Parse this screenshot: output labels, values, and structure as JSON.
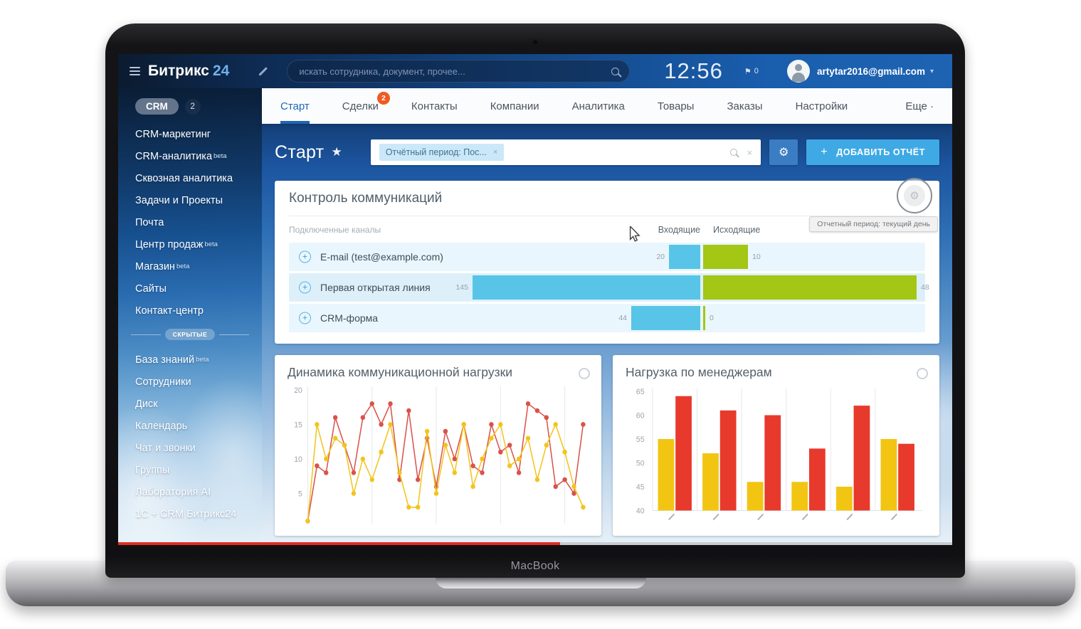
{
  "laptop": {
    "label": "MacBook"
  },
  "icons": {
    "close": "×",
    "caret": "▾",
    "star": "★",
    "gear": "⚙",
    "flag": "⚑",
    "plus": "+"
  },
  "topbar": {
    "logo_brand": "Битрикс",
    "logo_suffix": "24",
    "search_placeholder": "искать сотрудника, документ, прочее...",
    "clock": "12:56",
    "notifications": "0",
    "user_email": "artytar2016@gmail.com"
  },
  "sidebar": {
    "crm_pill": "CRM",
    "crm_badge": "2",
    "beta_label": "beta",
    "items": [
      {
        "label": "CRM-маркетинг"
      },
      {
        "label": "CRM-аналитика",
        "beta": true
      },
      {
        "label": "Сквозная аналитика"
      },
      {
        "label": "Задачи и Проекты"
      },
      {
        "label": "Почта"
      },
      {
        "label": "Центр продаж",
        "beta": true
      },
      {
        "label": "Магазин",
        "beta": true
      },
      {
        "label": "Сайты"
      },
      {
        "label": "Контакт-центр"
      }
    ],
    "hidden_divider": "СКРЫТЫЕ",
    "hidden_items": [
      {
        "label": "База знаний",
        "beta": true
      },
      {
        "label": "Сотрудники"
      },
      {
        "label": "Диск"
      },
      {
        "label": "Календарь"
      },
      {
        "label": "Чат и звонки"
      },
      {
        "label": "Группы"
      },
      {
        "label": "Лаборатория AI"
      },
      {
        "label": "1С + CRM Битрикс24"
      }
    ]
  },
  "tabs": {
    "items": [
      {
        "label": "Старт",
        "active": true
      },
      {
        "label": "Сделки",
        "badge": "2"
      },
      {
        "label": "Контакты"
      },
      {
        "label": "Компании"
      },
      {
        "label": "Аналитика"
      },
      {
        "label": "Товары"
      },
      {
        "label": "Заказы"
      },
      {
        "label": "Настройки"
      }
    ],
    "more_label": "Еще ·"
  },
  "page_header": {
    "title": "Старт",
    "filter_chip": "Отчётный период: Пос...",
    "add_report_label": "ДОБАВИТЬ ОТЧЁТ"
  },
  "communications_widget": {
    "title": "Контроль коммуникаций",
    "tooltip": "Отчетный период: текущий день",
    "channels_header": "Подключенные каналы",
    "incoming_header": "Входящие",
    "outgoing_header": "Исходящие",
    "colors": {
      "incoming": "#58c5e8",
      "outgoing": "#a4c614"
    },
    "rows": [
      {
        "label": "E-mail (test@example.com)",
        "incoming": 20,
        "outgoing": 10
      },
      {
        "label": "Первая открытая линия",
        "incoming": 145,
        "outgoing": 48
      },
      {
        "label": "CRM-форма",
        "incoming": 44,
        "outgoing": 0
      }
    ]
  },
  "chart_data": [
    {
      "type": "line",
      "title": "Динамика коммуникационной нагрузки",
      "ylim": [
        0,
        20
      ],
      "yticks": [
        20,
        15,
        10,
        5
      ],
      "grid": "vertical",
      "series": [
        {
          "name": "red-series",
          "color": "#d9534a",
          "values": [
            1,
            9,
            8,
            16,
            12,
            8,
            16,
            18,
            15,
            18,
            7,
            17,
            7,
            13,
            6,
            14,
            10,
            15,
            9,
            8,
            15,
            11,
            12,
            8,
            18,
            17,
            16,
            6,
            7,
            5,
            15
          ]
        },
        {
          "name": "yellow-series",
          "color": "#f2c41d",
          "values": [
            1,
            15,
            10,
            13,
            12,
            5,
            10,
            7,
            11,
            15,
            8,
            3,
            3,
            14,
            5,
            12,
            8,
            15,
            6,
            10,
            13,
            15,
            9,
            10,
            13,
            7,
            12,
            15,
            11,
            6,
            3
          ]
        }
      ]
    },
    {
      "type": "bar",
      "title": "Нагрузка по менеджерам",
      "ylim": [
        40,
        65
      ],
      "yticks": [
        65,
        60,
        55,
        50,
        45,
        40
      ],
      "grid": "vertical",
      "series": [
        {
          "name": "yellow-bars",
          "color": "#f2c513",
          "values": [
            55,
            52,
            46,
            46,
            45,
            55
          ]
        },
        {
          "name": "red-bars",
          "color": "#e8392d",
          "values": [
            64,
            61,
            60,
            53,
            62,
            54
          ]
        }
      ]
    }
  ]
}
